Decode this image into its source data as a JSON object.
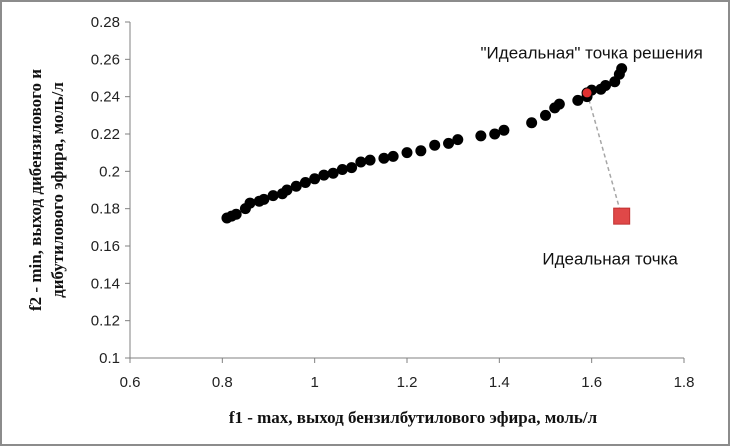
{
  "chart_data": {
    "type": "scatter",
    "xlabel": "f1 - max, выход бензилбутилового эфира, моль/л",
    "ylabel": [
      "f2 - min, выход дибензилового и",
      "дибутилового эфира, моль/л"
    ],
    "xlim": [
      0.6,
      1.8
    ],
    "ylim": [
      0.1,
      0.28
    ],
    "xticks": [
      0.6,
      0.8,
      1,
      1.2,
      1.4,
      1.6,
      1.8
    ],
    "yticks": [
      0.1,
      0.12,
      0.14,
      0.16,
      0.18,
      0.2,
      0.22,
      0.24,
      0.26,
      0.28
    ],
    "grid": false,
    "colors": {
      "points": "#000000",
      "solution": "#e03030",
      "ideal": "#e04848",
      "connector": "#a6a6a6",
      "frame": "#8c8c8c"
    },
    "series": [
      {
        "marker": "circle",
        "points": [
          [
            0.81,
            0.175
          ],
          [
            0.82,
            0.176
          ],
          [
            0.83,
            0.177
          ],
          [
            0.85,
            0.18
          ],
          [
            0.86,
            0.183
          ],
          [
            0.88,
            0.184
          ],
          [
            0.89,
            0.185
          ],
          [
            0.91,
            0.187
          ],
          [
            0.93,
            0.188
          ],
          [
            0.94,
            0.19
          ],
          [
            0.96,
            0.192
          ],
          [
            0.98,
            0.194
          ],
          [
            1.0,
            0.196
          ],
          [
            1.02,
            0.198
          ],
          [
            1.04,
            0.199
          ],
          [
            1.06,
            0.201
          ],
          [
            1.08,
            0.202
          ],
          [
            1.1,
            0.205
          ],
          [
            1.12,
            0.206
          ],
          [
            1.15,
            0.207
          ],
          [
            1.17,
            0.208
          ],
          [
            1.2,
            0.21
          ],
          [
            1.23,
            0.211
          ],
          [
            1.26,
            0.214
          ],
          [
            1.29,
            0.215
          ],
          [
            1.31,
            0.217
          ],
          [
            1.36,
            0.219
          ],
          [
            1.39,
            0.22
          ],
          [
            1.41,
            0.222
          ],
          [
            1.47,
            0.226
          ],
          [
            1.5,
            0.23
          ],
          [
            1.52,
            0.234
          ],
          [
            1.53,
            0.236
          ],
          [
            1.57,
            0.238
          ],
          [
            1.59,
            0.24
          ],
          [
            1.6,
            0.2435
          ],
          [
            1.62,
            0.244
          ],
          [
            1.63,
            0.246
          ],
          [
            1.65,
            0.248
          ],
          [
            1.66,
            0.252
          ],
          [
            1.665,
            0.255
          ]
        ]
      },
      {
        "marker": "circle-red",
        "points": [
          [
            1.59,
            0.242
          ]
        ]
      },
      {
        "marker": "square",
        "points": [
          [
            1.665,
            0.176
          ]
        ]
      }
    ],
    "connector": {
      "from": [
        1.59,
        0.242
      ],
      "to": [
        1.665,
        0.176
      ]
    },
    "annotations": [
      {
        "text": "\"Идеальная\"  точка решения",
        "anchor": [
          1.6,
          0.2605
        ]
      },
      {
        "text": "Идеальная точка",
        "anchor": [
          1.64,
          0.15
        ]
      }
    ]
  }
}
